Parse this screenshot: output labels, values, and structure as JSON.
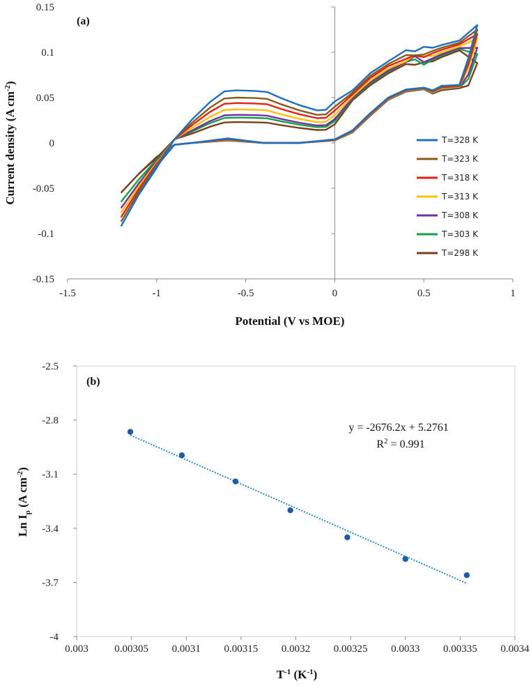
{
  "chart_data": [
    {
      "type": "line",
      "panel_label": "(a)",
      "xlabel": "Potential (V vs MOE)",
      "ylabel_main": "Current density (A cm",
      "ylabel_sup": "-2",
      "ylabel_end": ")",
      "xlim": [
        -1.5,
        1
      ],
      "ylim": [
        -0.15,
        0.15
      ],
      "xticks": [
        -1.5,
        -1,
        -0.5,
        0,
        0.5,
        1
      ],
      "xtick_labels": [
        "-1.5",
        "-1",
        "-0.5",
        "0",
        "0.5",
        "1"
      ],
      "yticks": [
        -0.15,
        -0.1,
        -0.05,
        0,
        0.05,
        0.1,
        0.15
      ],
      "ytick_labels": [
        "-0.15",
        "-0.1",
        "-0.05",
        "0",
        "0.05",
        "0.1",
        "0.15"
      ],
      "legend_position": "right",
      "series": [
        {
          "name": "T=328 K",
          "color": "#1f6fc0",
          "peak": 0.058,
          "end": 0.13,
          "start": -0.092
        },
        {
          "name": "T=323 K",
          "color": "#8b5a1a",
          "peak": 0.05,
          "end": 0.125,
          "start": -0.087
        },
        {
          "name": "T=318 K",
          "color": "#e32117",
          "peak": 0.044,
          "end": 0.12,
          "start": -0.082
        },
        {
          "name": "T=313 K",
          "color": "#ffc000",
          "peak": 0.037,
          "end": 0.115,
          "start": -0.077
        },
        {
          "name": "T=308 K",
          "color": "#7030a0",
          "peak": 0.031,
          "end": 0.105,
          "start": -0.072
        },
        {
          "name": "T=303 K",
          "color": "#12a04a",
          "peak": 0.028,
          "end": 0.098,
          "start": -0.065
        },
        {
          "name": "T=298 K",
          "color": "#7b3e1c",
          "peak": 0.023,
          "end": 0.088,
          "start": -0.055
        }
      ]
    },
    {
      "type": "scatter",
      "panel_label": "(b)",
      "xlabel_main": "T",
      "xlabel_sup": "-1",
      "xlabel_mid": " (K",
      "xlabel_sup2": "-1",
      "xlabel_end": ")",
      "ylabel_main": "Ln I",
      "ylabel_sub": "p",
      "ylabel_mid": " (A cm",
      "ylabel_sup": "-2",
      "ylabel_end": ")",
      "xlim": [
        0.003,
        0.0034
      ],
      "ylim": [
        -4,
        -2.5
      ],
      "xticks": [
        0.003,
        0.00305,
        0.0031,
        0.00315,
        0.0032,
        0.00325,
        0.0033,
        0.00335,
        0.0034
      ],
      "xtick_labels": [
        "0.003",
        "0.00305",
        "0.0031",
        "0.00315",
        "0.0032",
        "0.00325",
        "0.0033",
        "0.00335",
        "0.0034"
      ],
      "yticks": [
        -4,
        -3.7,
        -3.4,
        -3.1,
        -2.8,
        -2.5
      ],
      "ytick_labels": [
        "-4",
        "-3.7",
        "-3.4",
        "-3.1",
        "-2.8",
        "-2.5"
      ],
      "x": [
        0.003049,
        0.003096,
        0.003145,
        0.003195,
        0.003247,
        0.0033,
        0.003356
      ],
      "y": [
        -2.865,
        -2.995,
        -3.14,
        -3.3,
        -3.45,
        -3.57,
        -3.66
      ],
      "marker_color": "#1f5aa8",
      "trendline": {
        "slope": -2676.2,
        "intercept": 5.2761,
        "x_range": [
          0.003049,
          0.003356
        ],
        "color": "#2e86c8",
        "style": "dotted"
      },
      "equation": "y = -2676.2x + 5.2761",
      "r_squared_prefix": "R",
      "r_squared_sup": "2",
      "r_squared_suffix": " = 0.991"
    }
  ]
}
